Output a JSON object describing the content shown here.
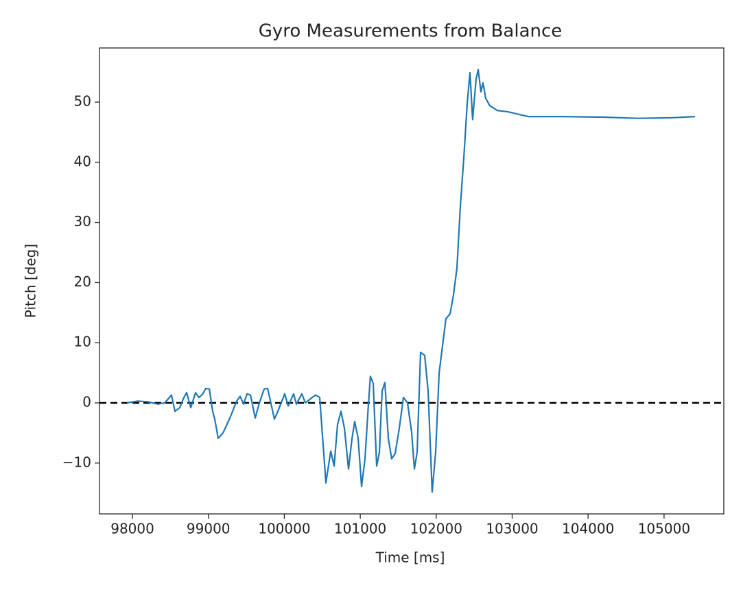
{
  "chart_data": {
    "type": "line",
    "title": "Gyro Measurements from Balance",
    "xlabel": "Time [ms]",
    "ylabel": "Pitch [deg]",
    "xlim": [
      97566,
      105787
    ],
    "ylim": [
      -18.45,
      59.0
    ],
    "xticks": [
      98000,
      99000,
      100000,
      101000,
      102000,
      103000,
      104000,
      105000
    ],
    "yticks": [
      {
        "value": -10,
        "label": "−10"
      },
      0,
      10,
      20,
      30,
      40,
      50
    ],
    "hlines": [
      {
        "value": 0,
        "color": "#000000",
        "style": "dashed"
      }
    ],
    "series": [
      {
        "name": "pitch",
        "color": "#1f77b4",
        "x": [
          97928,
          98063,
          98199,
          98334,
          98425,
          98515,
          98560,
          98623,
          98677,
          98714,
          98768,
          98831,
          98876,
          98921,
          98967,
          99012,
          99057,
          99084,
          99129,
          99192,
          99283,
          99373,
          99418,
          99463,
          99509,
          99554,
          99617,
          99671,
          99734,
          99780,
          99870,
          99915,
          100005,
          100051,
          100123,
          100159,
          100231,
          100276,
          100367,
          100412,
          100466,
          100547,
          100611,
          100656,
          100701,
          100746,
          100791,
          100845,
          100891,
          100927,
          100972,
          101017,
          101062,
          101107,
          101134,
          101171,
          101216,
          101252,
          101288,
          101324,
          101369,
          101414,
          101460,
          101514,
          101568,
          101622,
          101676,
          101713,
          101749,
          101794,
          101848,
          101893,
          101947,
          101993,
          102038,
          102083,
          102128,
          102182,
          102227,
          102273,
          102318,
          102363,
          102408,
          102444,
          102480,
          102526,
          102553,
          102589,
          102616,
          102652,
          102706,
          102806,
          102941,
          103212,
          103664,
          104206,
          104657,
          105109,
          105407
        ],
        "values": [
          0,
          0.3,
          0.2,
          -0.2,
          0,
          1.3,
          -1.4,
          -0.8,
          0.9,
          1.7,
          -0.8,
          1.7,
          0.9,
          1.4,
          2.4,
          2.3,
          -1.4,
          -2.7,
          -5.9,
          -5.0,
          -2.5,
          0.3,
          1.1,
          -0.2,
          1.5,
          1.3,
          -2.5,
          0,
          2.3,
          2.4,
          -2.7,
          -1.4,
          1.5,
          -0.5,
          1.5,
          -0.2,
          1.5,
          0,
          0.9,
          1.3,
          0.9,
          -13.3,
          -8.0,
          -10.5,
          -3.6,
          -1.4,
          -4.2,
          -11.0,
          -5.9,
          -3.1,
          -5.9,
          -13.9,
          -9.3,
          -0.2,
          4.4,
          3.2,
          -10.5,
          -8.2,
          2.0,
          3.4,
          -5.9,
          -9.3,
          -8.4,
          -4.2,
          0.9,
          0,
          -4.8,
          -11.0,
          -8.2,
          8.4,
          7.9,
          2.0,
          -14.8,
          -8.2,
          4.9,
          9.5,
          14.0,
          14.8,
          17.9,
          22.4,
          32.7,
          40.7,
          49.8,
          54.9,
          47.1,
          53.9,
          55.4,
          51.7,
          53.2,
          50.6,
          49.4,
          48.6,
          48.4,
          47.6,
          47.6,
          47.5,
          47.3,
          47.4,
          47.6
        ]
      }
    ]
  }
}
